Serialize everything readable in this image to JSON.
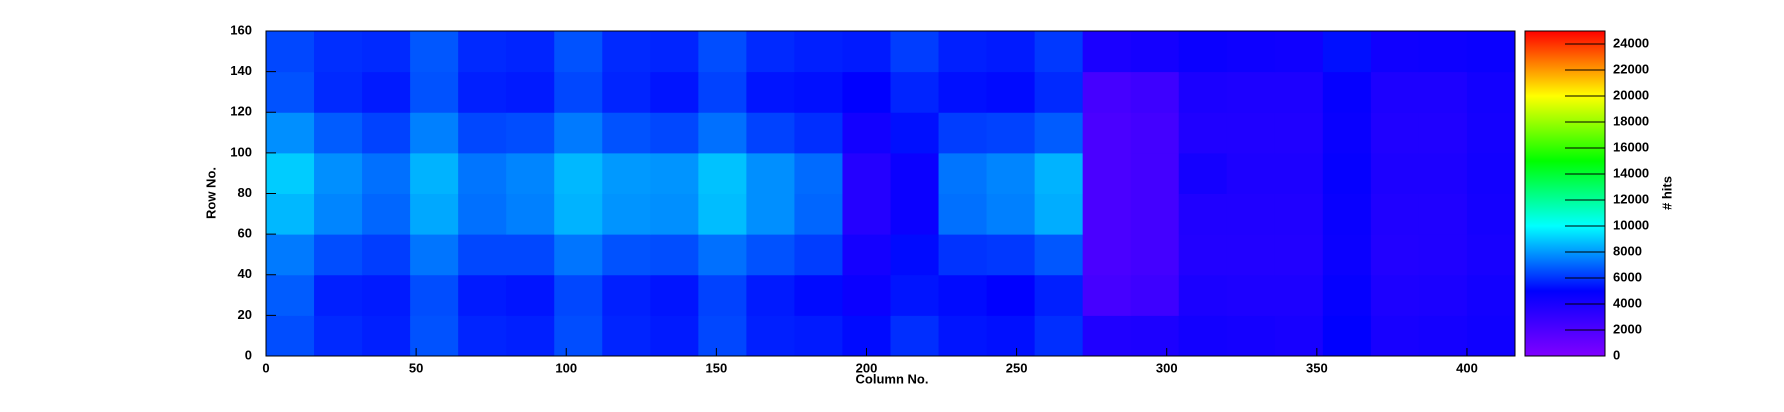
{
  "chart_data": {
    "type": "heatmap",
    "x_label": "Column No.",
    "y_label": "Row No.",
    "z_label": "# hits",
    "xbins": [
      0,
      16,
      32,
      48,
      64,
      80,
      96,
      112,
      128,
      144,
      160,
      176,
      192,
      208,
      224,
      240,
      256,
      272,
      288,
      304,
      320,
      336,
      352,
      368,
      384,
      400,
      416
    ],
    "ybins": [
      0,
      20,
      40,
      60,
      80,
      100,
      120,
      140,
      160
    ],
    "z": [
      [
        6500,
        5800,
        5600,
        6600,
        5700,
        5600,
        6500,
        5700,
        5500,
        6400,
        5600,
        5500,
        5200,
        5900,
        5400,
        5300,
        5900,
        3800,
        3900,
        4300,
        4200,
        4100,
        5000,
        4100,
        4200,
        4400
      ],
      [
        6800,
        5600,
        5500,
        6500,
        5500,
        5400,
        6400,
        5600,
        5400,
        6300,
        5500,
        5200,
        4600,
        5400,
        5200,
        5000,
        5600,
        2300,
        2600,
        4000,
        3900,
        3900,
        4800,
        3900,
        4000,
        4300
      ],
      [
        7400,
        6500,
        6200,
        7300,
        6400,
        6400,
        7300,
        6600,
        6500,
        7200,
        6600,
        6200,
        4200,
        5200,
        6000,
        6100,
        6700,
        2100,
        2400,
        3700,
        3700,
        3700,
        4600,
        3700,
        3800,
        4100
      ],
      [
        8600,
        7600,
        7000,
        8300,
        7200,
        7500,
        8500,
        7900,
        7800,
        8700,
        7800,
        7000,
        3600,
        4600,
        7200,
        7500,
        8400,
        2100,
        2400,
        3800,
        3800,
        3800,
        4700,
        3800,
        3800,
        4200
      ],
      [
        9000,
        7800,
        7200,
        8500,
        7300,
        7600,
        8600,
        8000,
        7900,
        8800,
        7800,
        7100,
        3600,
        4600,
        7300,
        7600,
        8500,
        2100,
        2400,
        4200,
        3900,
        3900,
        4800,
        3900,
        3900,
        4300
      ],
      [
        7800,
        6800,
        6300,
        7500,
        6400,
        6500,
        7400,
        6600,
        6400,
        7200,
        6300,
        5900,
        4300,
        5300,
        6200,
        6300,
        6800,
        2100,
        2400,
        3800,
        3800,
        3800,
        4700,
        3800,
        3800,
        4200
      ],
      [
        6600,
        5800,
        5500,
        6600,
        5600,
        5500,
        6400,
        5700,
        5400,
        6300,
        5400,
        5300,
        5000,
        5700,
        5300,
        5200,
        5800,
        2300,
        2600,
        4000,
        3900,
        3900,
        4800,
        3900,
        3900,
        4300
      ],
      [
        6400,
        5900,
        5800,
        6700,
        5800,
        5700,
        6600,
        5800,
        5700,
        6500,
        5800,
        5600,
        5500,
        6200,
        5600,
        5500,
        6100,
        4000,
        4200,
        4600,
        4500,
        4400,
        5300,
        4400,
        4500,
        4600
      ]
    ],
    "xlim": [
      0,
      416
    ],
    "ylim": [
      0,
      160
    ],
    "zlim": [
      0,
      25000
    ],
    "xticks": [
      0,
      50,
      100,
      150,
      200,
      250,
      300,
      350,
      400
    ],
    "yticks": [
      0,
      20,
      40,
      60,
      80,
      100,
      120,
      140,
      160
    ],
    "zticks": [
      0,
      2000,
      4000,
      6000,
      8000,
      10000,
      12000,
      14000,
      16000,
      18000,
      20000,
      22000,
      24000
    ],
    "colormap": [
      "#8000ff",
      "#0000ff",
      "#00ffff",
      "#00ff00",
      "#ffff00",
      "#ff0000"
    ]
  }
}
